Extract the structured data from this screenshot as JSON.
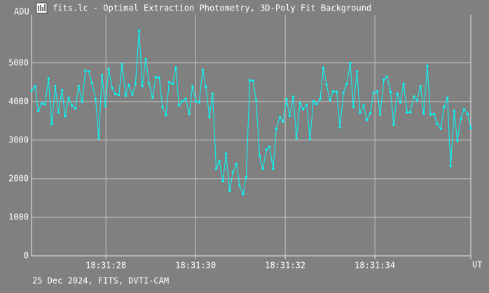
{
  "chart_data": {
    "type": "line",
    "title": "fits.lc - Optimal Extraction Photometry, 3D-Poly Fit Background",
    "y_label": "ADU",
    "x_label": "UT",
    "footer": "25 Dec 2024, FITS, DVTI-CAM",
    "x": [
      26.34,
      26.42,
      26.49,
      26.57,
      26.64,
      26.72,
      26.79,
      26.87,
      26.94,
      27.02,
      27.09,
      27.17,
      27.24,
      27.32,
      27.39,
      27.47,
      27.54,
      27.62,
      27.69,
      27.77,
      27.84,
      27.91,
      27.99,
      28.06,
      28.14,
      28.21,
      28.29,
      28.36,
      28.44,
      28.51,
      28.59,
      28.66,
      28.74,
      28.81,
      28.89,
      28.96,
      29.04,
      29.11,
      29.19,
      29.26,
      29.34,
      29.41,
      29.49,
      29.56,
      29.63,
      29.71,
      29.78,
      29.86,
      29.93,
      30.01,
      30.08,
      30.16,
      30.23,
      30.31,
      30.38,
      30.46,
      30.53,
      30.61,
      30.68,
      30.76,
      30.83,
      30.91,
      30.98,
      31.06,
      31.13,
      31.21,
      31.28,
      31.35,
      31.43,
      31.5,
      31.58,
      31.65,
      31.73,
      31.8,
      31.88,
      31.95,
      32.03,
      32.1,
      32.18,
      32.25,
      32.33,
      32.4,
      32.48,
      32.55,
      32.63,
      32.7,
      32.78,
      32.85,
      32.92,
      33.0,
      33.07,
      33.15,
      33.22,
      33.3,
      33.37,
      33.45,
      33.52,
      33.6,
      33.67,
      33.75,
      33.82,
      33.9,
      33.97,
      34.05,
      34.12,
      34.2,
      34.27,
      34.35,
      34.42,
      34.5,
      34.57,
      34.64,
      34.72,
      34.79,
      34.87,
      34.94,
      35.02,
      35.09,
      35.17,
      35.24,
      35.32,
      35.39,
      35.47,
      35.54,
      35.62,
      35.69,
      35.77,
      35.84,
      35.92,
      35.99,
      36.07,
      36.14
    ],
    "series": [
      {
        "color": "#00ffff",
        "values": [
          4280,
          4400,
          3750,
          3950,
          3930,
          4600,
          3420,
          4400,
          3720,
          4300,
          3620,
          4100,
          3900,
          3820,
          4400,
          3990,
          4800,
          4780,
          4480,
          4060,
          3050,
          4680,
          3880,
          4850,
          4350,
          4200,
          4170,
          4970,
          4150,
          4430,
          4180,
          4460,
          5840,
          4400,
          5100,
          4480,
          4100,
          4630,
          4620,
          3860,
          3650,
          4500,
          4460,
          4880,
          3900,
          4010,
          4070,
          3680,
          4400,
          4000,
          3980,
          4820,
          4380,
          3600,
          4200,
          2260,
          2450,
          1930,
          2650,
          1680,
          2160,
          2380,
          1820,
          1600,
          2050,
          4550,
          4540,
          4050,
          2580,
          2250,
          2750,
          2830,
          2250,
          3300,
          3600,
          3480,
          4060,
          3620,
          4130,
          3050,
          3960,
          3800,
          3920,
          3020,
          4010,
          3930,
          4060,
          4880,
          4440,
          4040,
          4260,
          4250,
          3330,
          4230,
          4450,
          5000,
          3860,
          4780,
          3710,
          3900,
          3520,
          3700,
          4230,
          4260,
          3660,
          4570,
          4650,
          4250,
          3400,
          4200,
          3980,
          4460,
          3720,
          3720,
          4130,
          4030,
          4400,
          3690,
          4920,
          3660,
          3680,
          3420,
          3300,
          3850,
          4100,
          2330,
          3760,
          2980,
          3560,
          3800,
          3680,
          3310
        ]
      }
    ],
    "xlim": [
      26.34,
      36.14
    ],
    "ylim": [
      0,
      6250
    ],
    "xticks": [
      {
        "value": 28,
        "label": "18:31:28"
      },
      {
        "value": 30,
        "label": "18:31:30"
      },
      {
        "value": 32,
        "label": "18:31:32"
      },
      {
        "value": 34,
        "label": "18:31:34"
      }
    ],
    "yticks": [
      0,
      1000,
      2000,
      3000,
      4000,
      5000
    ],
    "grid": true
  }
}
